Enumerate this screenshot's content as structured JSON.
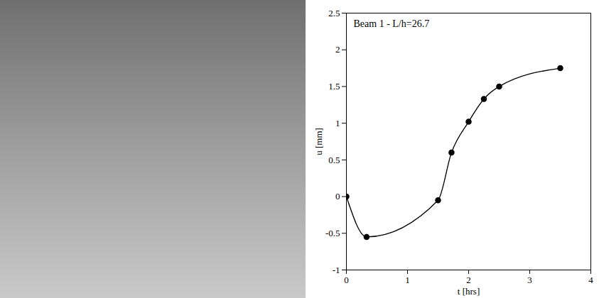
{
  "chart_data": {
    "type": "line",
    "title": "Beam 1 - L/h=26.7",
    "x_label": "t [hrs]",
    "y_label": "u [mm]",
    "x": [
      0,
      0.33,
      1.5,
      1.72,
      2,
      2.25,
      2.5,
      3.5
    ],
    "values": [
      0,
      -0.55,
      -0.05,
      0.6,
      1.02,
      1.33,
      1.5,
      1.75
    ],
    "color": "#000000",
    "marker": "circle",
    "line_style": "solid",
    "xlim": [
      0,
      4
    ],
    "xticks": [
      0,
      1,
      2,
      3,
      4
    ],
    "ylim": [
      -1,
      2.5
    ],
    "yticks": [
      -1,
      -0.5,
      0,
      0.5,
      1,
      1.5,
      2,
      2.5
    ],
    "grid": false
  }
}
